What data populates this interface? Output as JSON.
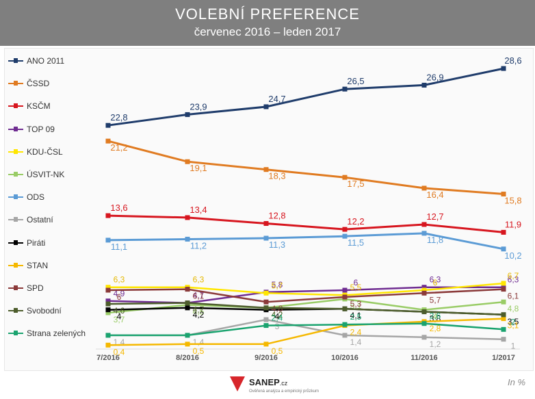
{
  "title": "VOLEBNÍ PREFERENCE",
  "subtitle": "červenec 2016 – leden 2017",
  "unit_label": "In %",
  "logo": {
    "name": "SANEP",
    "suffix": ".cz",
    "tagline": "Ověřená analýza a empirický průzkum"
  },
  "chart_data": {
    "type": "line",
    "categories": [
      "7/2016",
      "8/2016",
      "9/2016",
      "10/2016",
      "11/2016",
      "1/2017"
    ],
    "ylim": [
      0,
      30
    ],
    "grid": false,
    "legend_position": "left",
    "series": [
      {
        "name": "ANO 2011",
        "color": "#1f3c6b",
        "values": [
          22.8,
          23.9,
          24.7,
          26.5,
          26.9,
          28.6
        ],
        "labels": [
          "22,8",
          "23,9",
          "24,7",
          "26,5",
          "26,9",
          "28,6"
        ]
      },
      {
        "name": "ČSSD",
        "color": "#e07b21",
        "values": [
          21.2,
          19.1,
          18.3,
          17.5,
          16.4,
          15.8
        ],
        "labels": [
          "21,2",
          "19,1",
          "18,3",
          "17,5",
          "16,4",
          "15,8"
        ]
      },
      {
        "name": "KSČM",
        "color": "#d7161f",
        "values": [
          13.6,
          13.4,
          12.8,
          12.2,
          12.7,
          11.9
        ],
        "labels": [
          "13,6",
          "13,4",
          "12,8",
          "12,2",
          "12,7",
          "11,9"
        ]
      },
      {
        "name": "TOP 09",
        "color": "#6f2c91",
        "values": [
          4.9,
          4.7,
          5.8,
          6,
          6.3,
          6.3
        ],
        "labels": [
          "4,9",
          "4,7",
          "5,8",
          "6",
          "6,3",
          "6,3"
        ]
      },
      {
        "name": "KDU-ČSL",
        "color": "#ffe600",
        "values": [
          6.3,
          6.3,
          5.7,
          5.5,
          6,
          6.7
        ],
        "labels": [
          "6,3",
          "6,3",
          "5,7",
          "5,5",
          "6",
          "6,7"
        ]
      },
      {
        "name": "ÚSVIT-NK",
        "color": "#99cc66",
        "values": [
          3.7,
          4.5,
          4.2,
          5.1,
          4,
          4.8
        ],
        "labels": [
          "3,7",
          "4,5",
          "4,2",
          "5,1",
          "4",
          "4,8"
        ]
      },
      {
        "name": "ODS",
        "color": "#5b9bd5",
        "values": [
          11.1,
          11.2,
          11.3,
          11.5,
          11.8,
          10.2
        ],
        "labels": [
          "11,1",
          "11,2",
          "11,3",
          "11,5",
          "11,8",
          "10,2"
        ]
      },
      {
        "name": "Ostatní",
        "color": "#a6a6a6",
        "values": [
          1.4,
          1.4,
          3,
          1.4,
          1.2,
          1
        ],
        "labels": [
          "1,4",
          "1,4",
          "3",
          "1,4",
          "1,2",
          "1"
        ]
      },
      {
        "name": "Piráti",
        "color": "#000000",
        "values": [
          4,
          4.2,
          4,
          4.1,
          3.8,
          3.5
        ],
        "labels": [
          "4",
          "4,2",
          "4",
          "4,1",
          "3,8",
          "3,5"
        ]
      },
      {
        "name": "STAN",
        "color": "#f5b800",
        "values": [
          0.4,
          0.5,
          0.5,
          2.4,
          2.8,
          3.1
        ],
        "labels": [
          "0,4",
          "0,5",
          "0,5",
          "2,4",
          "2,8",
          "3,1"
        ]
      },
      {
        "name": "SPD",
        "color": "#8b3a3a",
        "values": [
          6,
          6.1,
          4.8,
          5.3,
          5.7,
          6.1
        ],
        "labels": [
          "6",
          "6,1",
          "4,8",
          "5,3",
          "5,7",
          "6,1"
        ]
      },
      {
        "name": "Svobodní",
        "color": "#4d5d2c",
        "values": [
          4.6,
          4.7,
          4.2,
          4.1,
          3.8,
          3.5
        ],
        "labels": [
          "4,6",
          "4,7",
          "4,2",
          "",
          "",
          ""
        ]
      },
      {
        "name": "Strana zelených",
        "color": "#1aa36f",
        "values": [
          1.4,
          1.4,
          2.4,
          2.5,
          2.6,
          2
        ],
        "labels": [
          "",
          "",
          "2,4",
          "2,5",
          "2,6",
          "2"
        ]
      }
    ]
  }
}
